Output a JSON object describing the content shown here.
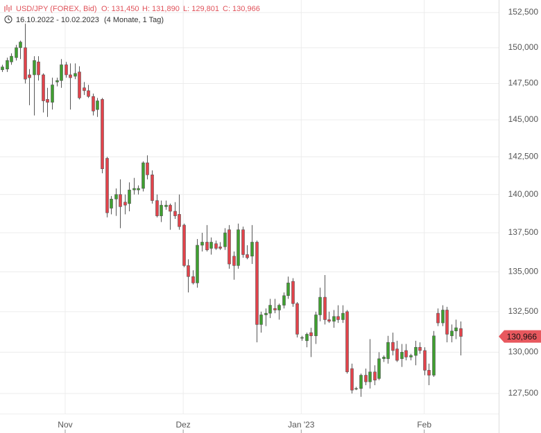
{
  "chart_data": {
    "type": "candlestick",
    "title": "USD/JPY (FOREX, Bid)",
    "header": [
      "O: 131,450",
      "H: 131,890",
      "L: 129,801",
      "C: 130,966"
    ],
    "subtitle": "16.10.2022 - 10.02.2023",
    "period": "(4 Monate, 1 Tag)",
    "log_scale": true,
    "grid": true,
    "up_color": "#3f9f30",
    "down_color": "#e2434b",
    "open": [
      148450,
      148500,
      149000,
      149300,
      150000,
      150000,
      148100,
      148100,
      149000,
      148100,
      146400,
      146200,
      147600,
      147700,
      148800,
      148100,
      148000,
      148300,
      147200,
      147000,
      146600,
      145700,
      146400,
      142400,
      139100,
      139700,
      140000,
      139500,
      139400,
      140300,
      140300,
      140400,
      142100,
      141300,
      139600,
      138600,
      139200,
      139300,
      138900,
      138700,
      138000,
      135400,
      134700,
      134300,
      136700,
      136900,
      136500,
      136800,
      136600,
      136600,
      137700,
      136000,
      135400,
      137700,
      136100,
      136000,
      136900,
      131700,
      132300,
      132400,
      132700,
      132600,
      132900,
      133500,
      134400,
      133000,
      130900,
      130700,
      131200,
      131000,
      132300,
      133400,
      132000,
      131900,
      132200,
      132000,
      132500,
      129000,
      127800,
      127800,
      128600,
      128200,
      128800,
      128400,
      129600,
      129600,
      130600,
      130200,
      129600,
      130100,
      129700,
      129800,
      130300,
      130100,
      128900,
      128600,
      132400,
      131800,
      132600,
      131000,
      131300,
      131450
    ],
    "high": [
      148800,
      149300,
      149600,
      150200,
      150500,
      151700,
      148500,
      149400,
      149400,
      148200,
      147200,
      147900,
      147900,
      149200,
      149000,
      148900,
      148900,
      148700,
      147600,
      147400,
      146800,
      146500,
      146500,
      142500,
      139900,
      140400,
      141000,
      140000,
      140800,
      141100,
      140600,
      142200,
      142600,
      141600,
      140000,
      139600,
      139600,
      139400,
      139500,
      140000,
      138100,
      135800,
      135100,
      137100,
      137500,
      138000,
      137200,
      137000,
      136900,
      137800,
      138000,
      136300,
      138100,
      137900,
      136700,
      138000,
      137000,
      132500,
      132700,
      133300,
      133300,
      133000,
      133700,
      134700,
      134600,
      133100,
      131000,
      131200,
      131500,
      132500,
      134000,
      134800,
      132500,
      132600,
      132900,
      132900,
      132600,
      129300,
      127900,
      128700,
      129000,
      130800,
      129200,
      130000,
      129800,
      131000,
      131200,
      130700,
      130500,
      130500,
      129900,
      130700,
      130600,
      130300,
      129300,
      131300,
      132700,
      132900,
      132800,
      131700,
      132000,
      131890
    ],
    "low": [
      148300,
      148300,
      148800,
      149100,
      149200,
      147500,
      146000,
      145300,
      147700,
      145500,
      145200,
      145700,
      147300,
      147200,
      147900,
      145700,
      147800,
      146400,
      146700,
      146500,
      145300,
      145200,
      141400,
      138500,
      138700,
      138600,
      137800,
      138700,
      138900,
      140000,
      140000,
      140200,
      141000,
      139400,
      138500,
      138200,
      139000,
      137700,
      138400,
      137700,
      135300,
      133700,
      134200,
      134000,
      136300,
      136300,
      136100,
      136400,
      136400,
      136400,
      135200,
      134500,
      135200,
      135900,
      135800,
      135500,
      130600,
      131200,
      131600,
      132100,
      132400,
      132000,
      132700,
      133300,
      132800,
      130900,
      130700,
      130300,
      129700,
      130500,
      131900,
      131700,
      131800,
      131500,
      131800,
      131800,
      128700,
      127500,
      127700,
      127300,
      128000,
      127800,
      128000,
      128300,
      129400,
      129300,
      129800,
      129400,
      129100,
      129500,
      129500,
      129200,
      129900,
      128600,
      128000,
      128500,
      131600,
      131600,
      130600,
      130600,
      130800,
      129801
    ],
    "close": [
      148650,
      149100,
      149400,
      150000,
      150400,
      147800,
      147900,
      149100,
      148100,
      146300,
      146200,
      147400,
      147700,
      148800,
      148100,
      147900,
      148200,
      146500,
      147000,
      146600,
      145600,
      146300,
      141700,
      138800,
      139700,
      140000,
      139200,
      139300,
      140300,
      140400,
      140400,
      142100,
      141300,
      139600,
      138600,
      139300,
      139300,
      138900,
      138600,
      137900,
      135400,
      134700,
      134300,
      136700,
      136900,
      136400,
      136900,
      136500,
      136500,
      137500,
      135500,
      135400,
      137700,
      136100,
      135900,
      136900,
      131700,
      132300,
      132400,
      132900,
      132600,
      132900,
      133500,
      134300,
      133000,
      131100,
      130900,
      131100,
      131000,
      132300,
      133400,
      132000,
      131900,
      132200,
      132000,
      132400,
      128800,
      127700,
      127800,
      128600,
      128200,
      128800,
      128300,
      129600,
      129700,
      130600,
      130100,
      129500,
      130000,
      129700,
      129800,
      130300,
      130100,
      128900,
      128600,
      131000,
      131800,
      132600,
      131100,
      131300,
      131500,
      130966
    ],
    "last_price": {
      "value": 130966,
      "label": "130,966"
    },
    "last_color": "#e8585e",
    "xlim": [
      -0.46,
      109.4
    ],
    "xticks": [
      {
        "value": 13.9,
        "label": "Nov"
      },
      {
        "value": 39.9,
        "label": "Dez"
      },
      {
        "value": 65.9,
        "label": "Jan '23"
      },
      {
        "value": 93,
        "label": "Feb"
      }
    ],
    "ylim": [
      126300,
      153400
    ],
    "yticks": [
      {
        "value": 127500,
        "label": "127,500"
      },
      {
        "value": 130000,
        "label": "130,000"
      },
      {
        "value": 132500,
        "label": "132,500"
      },
      {
        "value": 135000,
        "label": "135,000"
      },
      {
        "value": 137500,
        "label": "137,500"
      },
      {
        "value": 140000,
        "label": "140,000"
      },
      {
        "value": 142500,
        "label": "142,500"
      },
      {
        "value": 145000,
        "label": "145,000"
      },
      {
        "value": 147500,
        "label": "147,500"
      },
      {
        "value": 150000,
        "label": "150,000"
      },
      {
        "value": 152500,
        "label": "152,500"
      }
    ]
  }
}
